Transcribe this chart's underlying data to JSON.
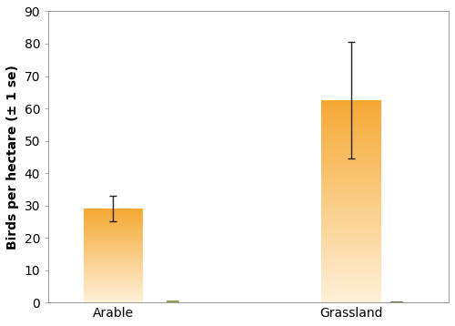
{
  "categories": [
    "Arable",
    "Grassland"
  ],
  "game_crop_values": [
    29,
    62.5
  ],
  "game_crop_errors": [
    4,
    18
  ],
  "other_crop_values": [
    0.7,
    0.4
  ],
  "ylabel": "Birds per hectare (± 1 se)",
  "ylim": [
    0,
    90
  ],
  "yticks": [
    0,
    10,
    20,
    30,
    40,
    50,
    60,
    70,
    80,
    90
  ],
  "bar_color_top": "#F5A832",
  "bar_color_bottom": "#FEF0D8",
  "other_bar_color_1": "#9B9B5A",
  "other_bar_color_2": "#7A7A42",
  "background_color": "#ffffff",
  "errorbar_color": "#222222",
  "errorbar_capsize": 3,
  "errorbar_linewidth": 1.0,
  "ylabel_fontsize": 10,
  "tick_fontsize": 10,
  "ylabel_bold": true,
  "game_bar_width": 0.55,
  "other_bar_width": 0.12,
  "x_positions": [
    1.0,
    3.2
  ],
  "other_offsets": [
    0.55,
    0.42
  ],
  "xlim": [
    0.4,
    4.1
  ]
}
